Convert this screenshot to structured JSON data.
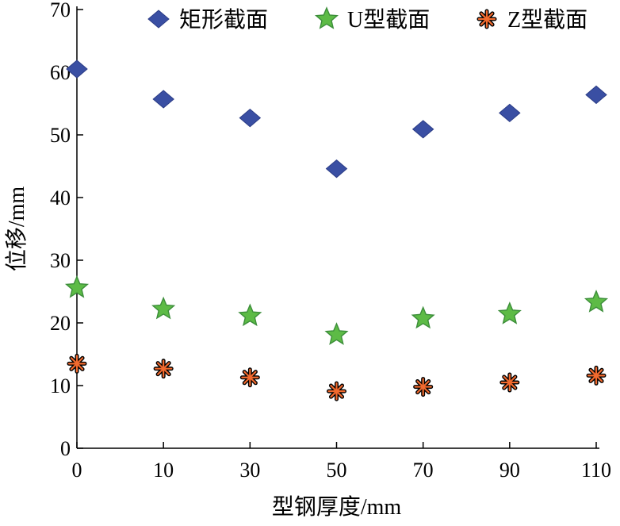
{
  "chart_data": {
    "type": "scatter",
    "xlabel": "型钢厚度/mm",
    "ylabel": "位移/mm",
    "categories": [
      "0",
      "10",
      "30",
      "50",
      "70",
      "90",
      "110"
    ],
    "ylim": [
      0,
      70
    ],
    "yticks": [
      "0",
      "10",
      "20",
      "30",
      "40",
      "50",
      "60",
      "70"
    ],
    "legend_position": "top",
    "grid": false,
    "series": [
      {
        "name": "矩形截面",
        "marker": "diamond",
        "color": "#3A4FA3",
        "values": [
          60.5,
          55.7,
          52.7,
          44.6,
          50.9,
          53.5,
          56.4
        ]
      },
      {
        "name": "U型截面",
        "marker": "star",
        "color": "#5DBB46",
        "values": [
          25.6,
          22.2,
          21.1,
          18.1,
          20.7,
          21.4,
          23.3
        ]
      },
      {
        "name": "Z型截面",
        "marker": "asterisk",
        "color": "#F26A2E",
        "values": [
          13.5,
          12.7,
          11.3,
          9.1,
          9.8,
          10.5,
          11.6
        ]
      }
    ]
  }
}
